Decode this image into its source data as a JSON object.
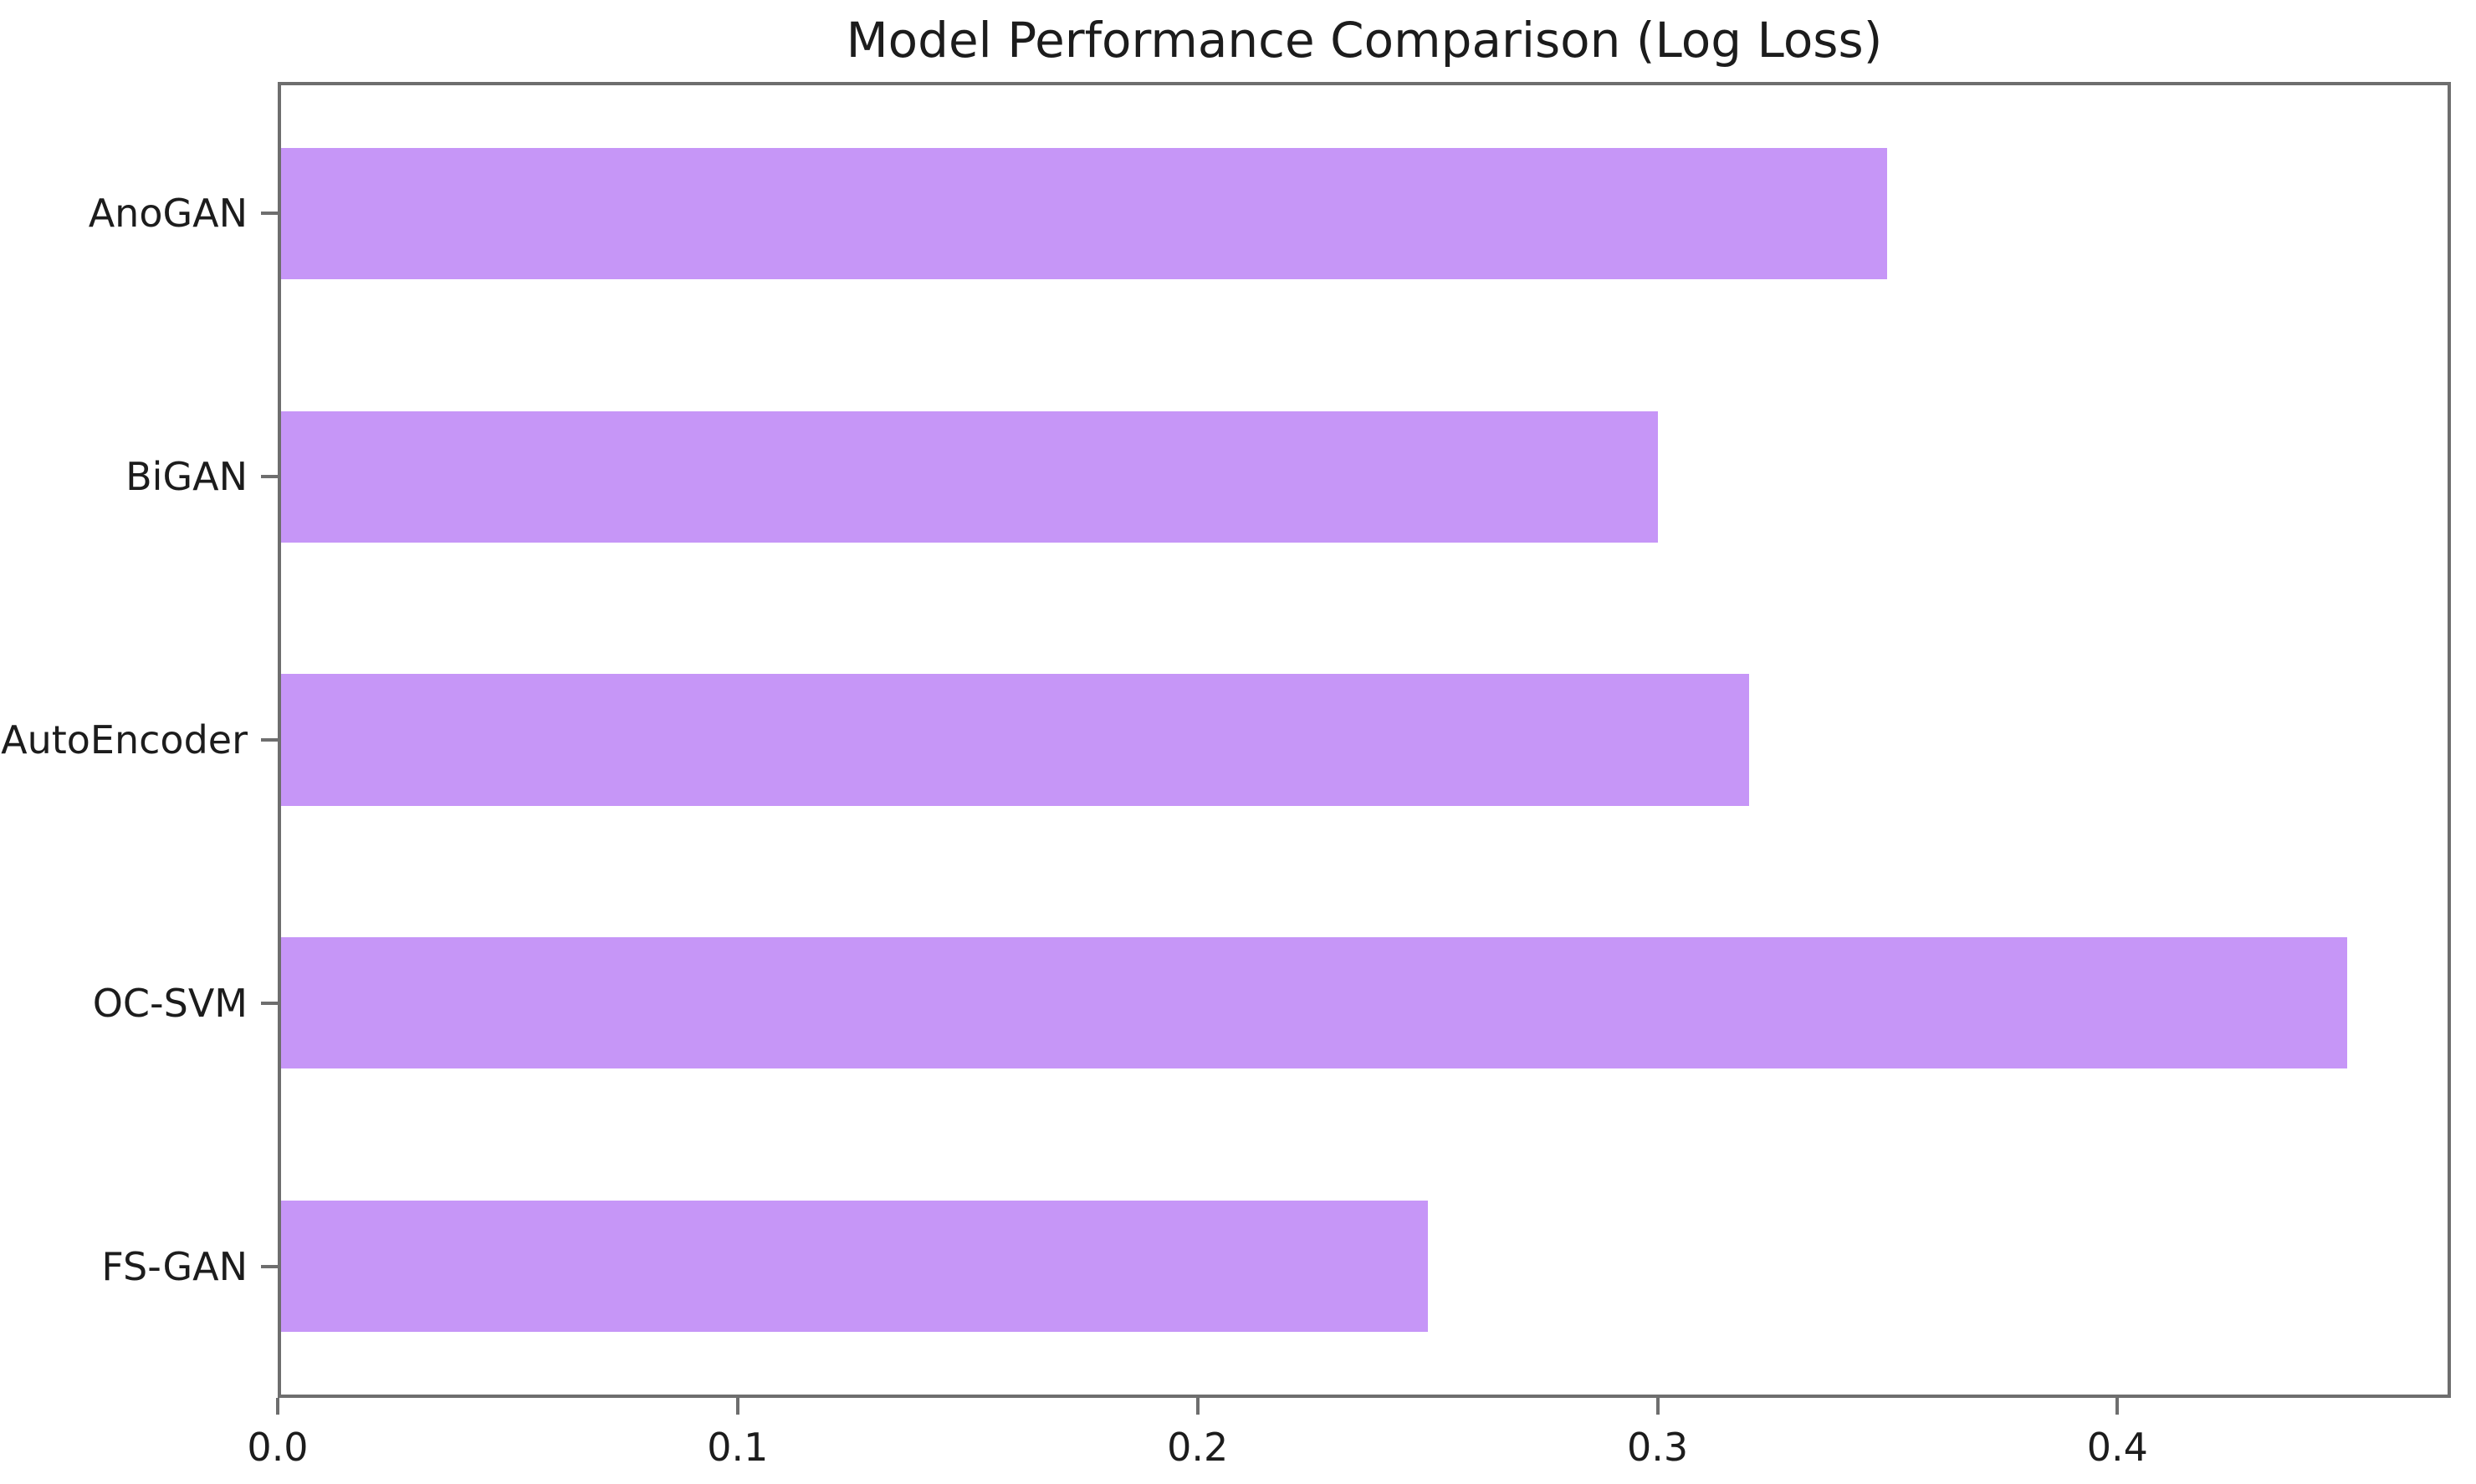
{
  "chart_data": {
    "type": "bar",
    "orientation": "horizontal",
    "title": "Model Performance Comparison (Log Loss)",
    "categories": [
      "AnoGAN",
      "BiGAN",
      "AutoEncoder",
      "OC-SVM",
      "FS-GAN"
    ],
    "values": [
      0.35,
      0.3,
      0.32,
      0.45,
      0.25
    ],
    "category_order": "top_to_bottom",
    "xlabel": "",
    "ylabel": "",
    "xlim": [
      0,
      0.4725
    ],
    "x_ticks": [
      0.0,
      0.1,
      0.2,
      0.3,
      0.4
    ],
    "x_tick_labels": [
      "0.0",
      "0.1",
      "0.2",
      "0.3",
      "0.4"
    ],
    "grid": false,
    "legend_position": "none",
    "bar_height_fraction": 0.5,
    "bar_color": "#c696f7"
  },
  "colors": {
    "background": "#ffffff",
    "axis": "#6e6e6e",
    "text": "#1c1c1c"
  }
}
